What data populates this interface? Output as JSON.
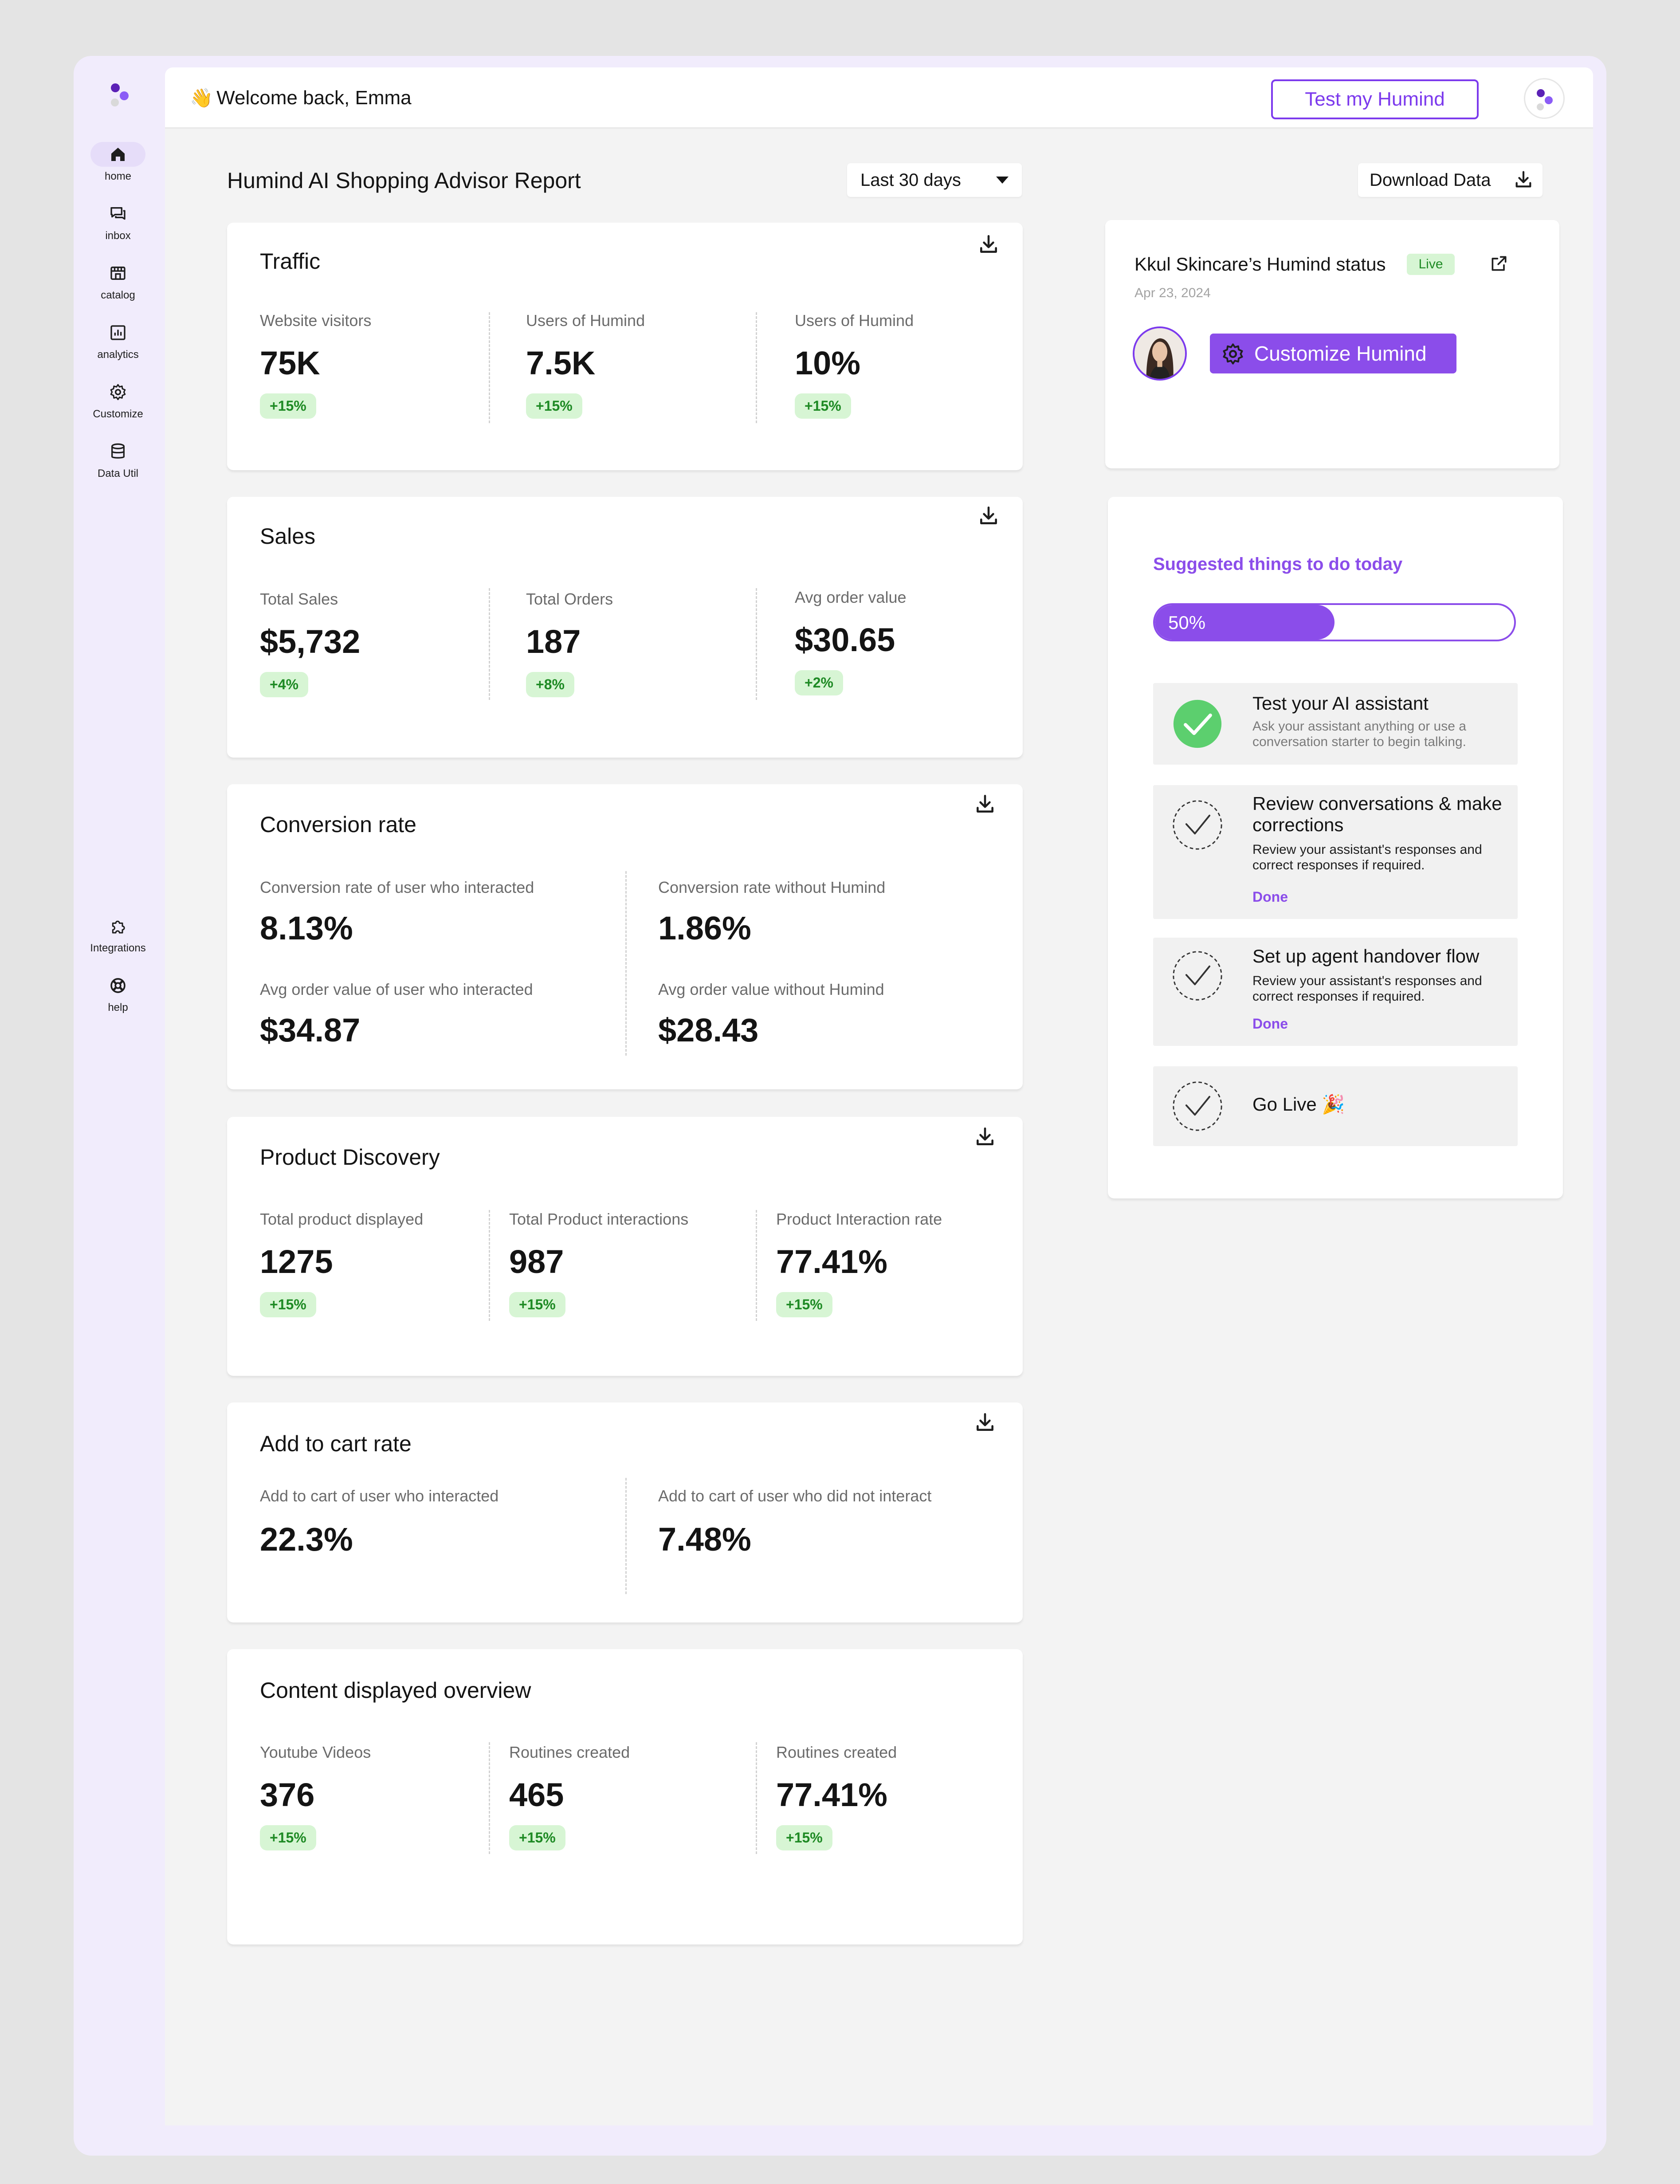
{
  "header": {
    "welcome_emoji": "👋",
    "welcome_text": "Welcome back, Emma",
    "test_button": "Test my Humind"
  },
  "sidebar": {
    "items": [
      {
        "label": "home",
        "icon": "home-icon"
      },
      {
        "label": "inbox",
        "icon": "inbox-icon"
      },
      {
        "label": "catalog",
        "icon": "store-icon"
      },
      {
        "label": "analytics",
        "icon": "analytics-icon"
      },
      {
        "label": "Customize",
        "icon": "gear-icon"
      },
      {
        "label": "Data Util",
        "icon": "database-icon"
      }
    ],
    "bottom_items": [
      {
        "label": "Integrations",
        "icon": "puzzle-icon"
      },
      {
        "label": "help",
        "icon": "lifebuoy-icon"
      }
    ]
  },
  "report": {
    "title": "Humind AI Shopping Advisor Report",
    "range": "Last 30 days",
    "download_label": "Download Data"
  },
  "traffic": {
    "title": "Traffic",
    "metrics": [
      {
        "label": "Website visitors",
        "value": "75K",
        "change": "+15%"
      },
      {
        "label": "Users of Humind",
        "value": "7.5K",
        "change": "+15%"
      },
      {
        "label": "Users of Humind",
        "value": "10%",
        "change": "+15%"
      }
    ]
  },
  "sales": {
    "title": "Sales",
    "metrics": [
      {
        "label": "Total Sales",
        "value": "$5,732",
        "change": "+4%"
      },
      {
        "label": "Total Orders",
        "value": "187",
        "change": "+8%"
      },
      {
        "label": "Avg order value",
        "value": "$30.65",
        "change": "+2%"
      }
    ]
  },
  "conversion": {
    "title": "Conversion rate",
    "metrics": [
      {
        "label": "Conversion rate of user who interacted",
        "value": "8.13%"
      },
      {
        "label": "Conversion rate without Humind",
        "value": "1.86%"
      },
      {
        "label": "Avg order value of user who interacted",
        "value": "$34.87"
      },
      {
        "label": "Avg order value without Humind",
        "value": "$28.43"
      }
    ]
  },
  "discovery": {
    "title": "Product Discovery",
    "metrics": [
      {
        "label": "Total product displayed",
        "value": "1275",
        "change": "+15%"
      },
      {
        "label": "Total Product interactions",
        "value": "987",
        "change": "+15%"
      },
      {
        "label": "Product Interaction rate",
        "value": "77.41%",
        "change": "+15%"
      }
    ]
  },
  "cart": {
    "title": "Add to cart rate",
    "metrics": [
      {
        "label": "Add to cart of user who interacted",
        "value": "22.3%"
      },
      {
        "label": "Add to cart of user who did not interact",
        "value": "7.48%"
      }
    ]
  },
  "content": {
    "title": "Content displayed overview",
    "metrics": [
      {
        "label": "Youtube Videos",
        "value": "376",
        "change": "+15%"
      },
      {
        "label": "Routines created",
        "value": "465",
        "change": "+15%"
      },
      {
        "label": "Routines created",
        "value": "77.41%",
        "change": "+15%"
      }
    ]
  },
  "status": {
    "title": "Kkul Skincare’s Humind status",
    "live": "Live",
    "date": "Apr 23, 2024",
    "customize_button": "Customize Humind"
  },
  "suggestions": {
    "title": "Suggested things to do today",
    "progress_label": "50%",
    "progress_fraction": 0.5,
    "tasks": [
      {
        "title": "Test your AI assistant",
        "desc": "Ask your assistant anything or use a conversation starter to begin talking.",
        "done_label": "",
        "completed": true
      },
      {
        "title": "Review conversations & make corrections",
        "desc": "Review your assistant's responses and correct responses if required.",
        "done_label": "Done",
        "completed": false
      },
      {
        "title": "Set up agent handover flow",
        "desc": "Review your assistant's responses and correct responses if required.",
        "done_label": "Done",
        "completed": false
      },
      {
        "title": "Go Live 🎉",
        "desc": "",
        "done_label": "",
        "completed": false
      }
    ]
  },
  "colors": {
    "accent": "#7c3aed",
    "accent_fill": "#8b4dea",
    "positive_bg": "#d7f5d4",
    "positive_text": "#1e8a24",
    "check_green": "#5ccf6e"
  }
}
